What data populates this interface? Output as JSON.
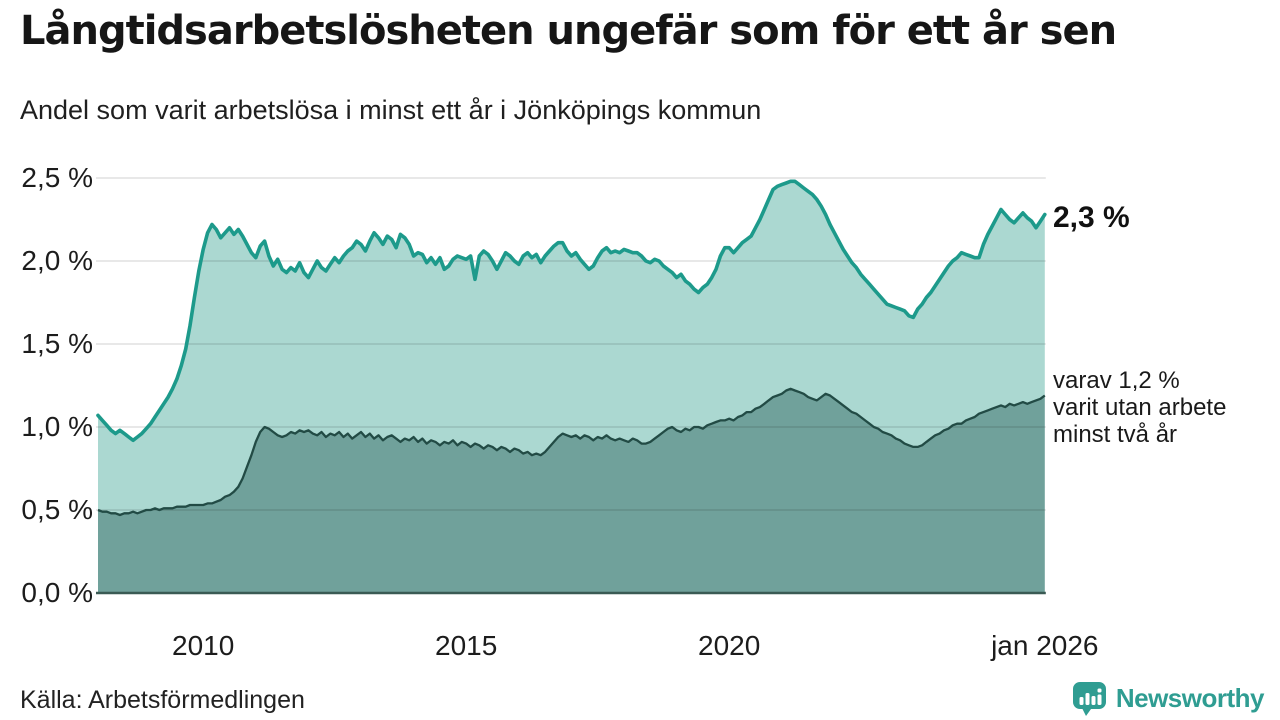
{
  "header": {
    "title": "Långtidsarbetslösheten ungefär som för ett år sen",
    "subtitle": "Andel som varit arbetslösa i minst ett år i Jönköpings kommun"
  },
  "annotations": {
    "latest_label": "2,3 %",
    "note_lines": [
      "varav 1,2 %",
      "varit utan arbete",
      "minst två år"
    ]
  },
  "footer": {
    "source": "Källa: Arbetsförmedlingen",
    "brand_name": "Newsworthy"
  },
  "colors": {
    "line_1yr": "#1d9a8b",
    "fill_1yr": "#abd8d1",
    "line_2yr": "#224b45",
    "fill_2yr": "#70a19b",
    "baseline": "#3a5a54",
    "grid_overlay": "rgba(0,0,0,0.12)",
    "brand_teal": "#2f9d92"
  },
  "chart_data": {
    "type": "area",
    "title": "Långtidsarbetslösheten ungefär som för ett år sen",
    "xlabel": "",
    "ylabel": "",
    "unit": "%",
    "frequency": "monthly",
    "x_start": "2008-01",
    "x_end": "2026-01",
    "n_points": 217,
    "ylim": [
      0,
      2.6
    ],
    "grid": true,
    "legend_position": "right-annotations",
    "yticks": [
      {
        "label": "2,5 %",
        "value": 2.5
      },
      {
        "label": "2,0 %",
        "value": 2.0
      },
      {
        "label": "1,5 %",
        "value": 1.5
      },
      {
        "label": "1,0 %",
        "value": 1.0
      },
      {
        "label": "0,5 %",
        "value": 0.5
      },
      {
        "label": "0,0 %",
        "value": 0.0
      }
    ],
    "xticks": [
      {
        "label": "2010",
        "month_index": 24
      },
      {
        "label": "2015",
        "month_index": 84
      },
      {
        "label": "2020",
        "month_index": 144
      },
      {
        "label": "jan 2026",
        "month_index": 216
      }
    ],
    "series": [
      {
        "name": "Andel som varit arbetslösa i minst ett år",
        "latest_value": 2.3,
        "values": [
          1.07,
          1.04,
          1.01,
          0.98,
          0.96,
          0.98,
          0.96,
          0.94,
          0.92,
          0.94,
          0.96,
          0.99,
          1.02,
          1.06,
          1.1,
          1.14,
          1.18,
          1.23,
          1.29,
          1.37,
          1.47,
          1.61,
          1.78,
          1.94,
          2.07,
          2.17,
          2.22,
          2.19,
          2.14,
          2.17,
          2.2,
          2.16,
          2.19,
          2.15,
          2.1,
          2.05,
          2.02,
          2.09,
          2.12,
          2.03,
          1.97,
          2.01,
          1.95,
          1.93,
          1.96,
          1.94,
          1.99,
          1.93,
          1.9,
          1.95,
          2.0,
          1.96,
          1.94,
          1.98,
          2.02,
          1.99,
          2.03,
          2.06,
          2.08,
          2.12,
          2.1,
          2.06,
          2.12,
          2.17,
          2.14,
          2.1,
          2.15,
          2.13,
          2.08,
          2.16,
          2.14,
          2.1,
          2.03,
          2.05,
          2.04,
          1.99,
          2.02,
          1.98,
          2.02,
          1.95,
          1.97,
          2.01,
          2.03,
          2.02,
          2.01,
          2.03,
          1.89,
          2.03,
          2.06,
          2.04,
          2.0,
          1.95,
          2.0,
          2.05,
          2.03,
          2.0,
          1.98,
          2.03,
          2.05,
          2.02,
          2.04,
          1.99,
          2.03,
          2.06,
          2.09,
          2.11,
          2.11,
          2.06,
          2.03,
          2.05,
          2.01,
          1.98,
          1.95,
          1.97,
          2.02,
          2.06,
          2.08,
          2.05,
          2.06,
          2.05,
          2.07,
          2.06,
          2.05,
          2.05,
          2.03,
          2.0,
          1.99,
          2.01,
          2.0,
          1.97,
          1.95,
          1.93,
          1.9,
          1.92,
          1.88,
          1.86,
          1.83,
          1.81,
          1.84,
          1.86,
          1.9,
          1.95,
          2.03,
          2.08,
          2.08,
          2.05,
          2.08,
          2.11,
          2.13,
          2.15,
          2.2,
          2.25,
          2.31,
          2.37,
          2.43,
          2.45,
          2.46,
          2.47,
          2.48,
          2.48,
          2.46,
          2.44,
          2.42,
          2.4,
          2.37,
          2.33,
          2.28,
          2.22,
          2.17,
          2.12,
          2.07,
          2.03,
          1.99,
          1.96,
          1.92,
          1.89,
          1.86,
          1.83,
          1.8,
          1.77,
          1.74,
          1.73,
          1.72,
          1.71,
          1.7,
          1.67,
          1.66,
          1.71,
          1.74,
          1.78,
          1.81,
          1.85,
          1.89,
          1.93,
          1.97,
          2.0,
          2.02,
          2.05,
          2.04,
          2.03,
          2.02,
          2.02,
          2.1,
          2.16,
          2.21,
          2.26,
          2.31,
          2.28,
          2.25,
          2.23,
          2.26,
          2.29,
          2.26,
          2.24,
          2.2,
          2.24,
          2.28
        ]
      },
      {
        "name": "varav utan arbete minst två år",
        "latest_value": 1.2,
        "values": [
          0.5,
          0.49,
          0.49,
          0.48,
          0.48,
          0.47,
          0.48,
          0.48,
          0.49,
          0.48,
          0.49,
          0.5,
          0.5,
          0.51,
          0.5,
          0.51,
          0.51,
          0.51,
          0.52,
          0.52,
          0.52,
          0.53,
          0.53,
          0.53,
          0.53,
          0.54,
          0.54,
          0.55,
          0.56,
          0.58,
          0.59,
          0.61,
          0.64,
          0.69,
          0.76,
          0.83,
          0.91,
          0.97,
          1.0,
          0.99,
          0.97,
          0.95,
          0.94,
          0.95,
          0.97,
          0.96,
          0.98,
          0.97,
          0.98,
          0.96,
          0.95,
          0.97,
          0.94,
          0.96,
          0.95,
          0.97,
          0.94,
          0.96,
          0.93,
          0.95,
          0.97,
          0.94,
          0.96,
          0.93,
          0.95,
          0.92,
          0.94,
          0.95,
          0.93,
          0.91,
          0.93,
          0.92,
          0.94,
          0.91,
          0.93,
          0.9,
          0.92,
          0.91,
          0.89,
          0.91,
          0.9,
          0.92,
          0.89,
          0.91,
          0.9,
          0.88,
          0.9,
          0.89,
          0.87,
          0.89,
          0.88,
          0.86,
          0.88,
          0.87,
          0.85,
          0.87,
          0.86,
          0.84,
          0.85,
          0.83,
          0.84,
          0.83,
          0.85,
          0.88,
          0.91,
          0.94,
          0.96,
          0.95,
          0.94,
          0.95,
          0.93,
          0.95,
          0.94,
          0.92,
          0.94,
          0.93,
          0.95,
          0.93,
          0.92,
          0.93,
          0.92,
          0.91,
          0.93,
          0.92,
          0.9,
          0.9,
          0.91,
          0.93,
          0.95,
          0.97,
          0.99,
          1.0,
          0.98,
          0.97,
          0.99,
          0.98,
          1.0,
          1.0,
          0.99,
          1.01,
          1.02,
          1.03,
          1.04,
          1.04,
          1.05,
          1.04,
          1.06,
          1.07,
          1.09,
          1.09,
          1.11,
          1.12,
          1.14,
          1.16,
          1.18,
          1.19,
          1.2,
          1.22,
          1.23,
          1.22,
          1.21,
          1.2,
          1.18,
          1.17,
          1.16,
          1.18,
          1.2,
          1.19,
          1.17,
          1.15,
          1.13,
          1.11,
          1.09,
          1.08,
          1.06,
          1.04,
          1.02,
          1.0,
          0.99,
          0.97,
          0.96,
          0.95,
          0.93,
          0.92,
          0.9,
          0.89,
          0.88,
          0.88,
          0.89,
          0.91,
          0.93,
          0.95,
          0.96,
          0.98,
          0.99,
          1.01,
          1.02,
          1.02,
          1.04,
          1.05,
          1.06,
          1.08,
          1.09,
          1.1,
          1.11,
          1.12,
          1.13,
          1.12,
          1.14,
          1.13,
          1.14,
          1.15,
          1.14,
          1.15,
          1.16,
          1.17,
          1.19
        ]
      }
    ]
  }
}
